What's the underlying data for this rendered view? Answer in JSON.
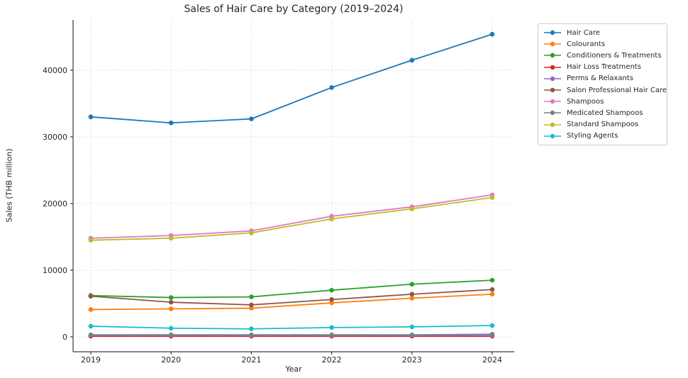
{
  "chart_data": {
    "type": "line",
    "title": "Sales of Hair Care by Category (2019–2024)",
    "xlabel": "Year",
    "ylabel": "Sales (THB million)",
    "categories": [
      "2019",
      "2020",
      "2021",
      "2022",
      "2023",
      "2024"
    ],
    "y_ticks": [
      0,
      10000,
      20000,
      30000,
      40000
    ],
    "ylim": [
      -2200,
      47600
    ],
    "grid": "dotted-both-axes",
    "legend_position": "outside-right",
    "marker": "circle",
    "series": [
      {
        "name": "Hair Care",
        "color": "#1f77b4",
        "values": [
          33000,
          32100,
          32700,
          37400,
          41500,
          45400
        ]
      },
      {
        "name": "Colourants",
        "color": "#ff7f0e",
        "values": [
          4100,
          4200,
          4300,
          5100,
          5800,
          6400
        ]
      },
      {
        "name": "Conditioners & Treatments",
        "color": "#2ca02c",
        "values": [
          6200,
          5900,
          6000,
          7000,
          7900,
          8500
        ]
      },
      {
        "name": "Hair Loss Treatments",
        "color": "#d62728",
        "values": [
          100,
          100,
          100,
          100,
          100,
          100
        ]
      },
      {
        "name": "Perms & Relaxants",
        "color": "#9467bd",
        "values": [
          200,
          200,
          200,
          200,
          200,
          200
        ]
      },
      {
        "name": "Salon Professional Hair Care",
        "color": "#8c564b",
        "values": [
          6100,
          5200,
          4800,
          5600,
          6400,
          7100
        ]
      },
      {
        "name": "Shampoos",
        "color": "#e377c2",
        "values": [
          14800,
          15200,
          15900,
          18100,
          19500,
          21300
        ]
      },
      {
        "name": "Medicated Shampoos",
        "color": "#7f7f7f",
        "values": [
          300,
          300,
          300,
          300,
          300,
          400
        ]
      },
      {
        "name": "Standard Shampoos",
        "color": "#bcbd22",
        "values": [
          14500,
          14800,
          15600,
          17700,
          19200,
          20900
        ]
      },
      {
        "name": "Styling Agents",
        "color": "#17becf",
        "values": [
          1600,
          1300,
          1200,
          1400,
          1500,
          1700
        ]
      }
    ]
  },
  "colors": {
    "background": "#ffffff",
    "text": "#262626",
    "grid": "#d9d9d9",
    "spine": "#3a3a3a",
    "legend_border": "#cccccc"
  }
}
